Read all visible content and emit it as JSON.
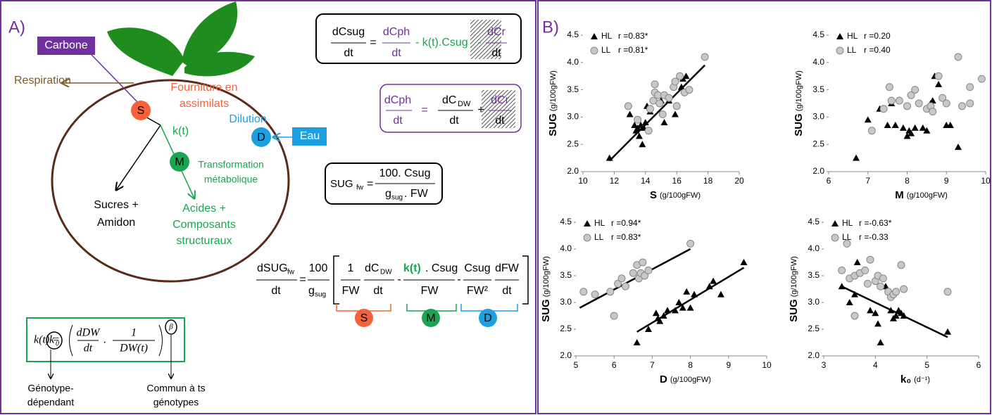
{
  "panel_a": {
    "label": "A)",
    "carbone": "Carbone",
    "respiration": "Respiration",
    "fourniture": [
      "Fourniture en",
      "assimilats"
    ],
    "node_s": "S",
    "node_m": "M",
    "node_d": "D",
    "kt": "k(t)",
    "dilution": "Dilution",
    "eau": "Eau",
    "transformation": [
      "Transformation",
      "métabolique"
    ],
    "sucres": [
      "Sucres +",
      "Amidon"
    ],
    "acides": [
      "Acides  +",
      "Composants",
      "structuraux"
    ],
    "eq_csug": {
      "lhs_num": "dCsug",
      "lhs_den": "dt",
      "equals": "=",
      "cph_num": "dCph",
      "cph_den": "dt",
      "transform": "- k(t).Csug",
      "minus": "-",
      "cr_num": "dCr",
      "cr_den": "dt"
    },
    "eq_cph": {
      "lhs_num": "dCph",
      "lhs_den": "dt",
      "equals": "=",
      "dw_num": "dC",
      "dw_sub": "DW",
      "dw_den": "dt",
      "plus": "+",
      "cr_num": "dCr",
      "cr_den": "dt"
    },
    "eq_sug": {
      "lhs": "SUG",
      "lhs_sub": "fw",
      "equals": "=",
      "num": "100. Csug",
      "den": "g",
      "den_sub": "sug",
      "den_rest": ". FW"
    },
    "eq_dsug": {
      "lhs_num": "dSUG",
      "lhs_sub": "fw",
      "lhs_den": "dt",
      "equals": "=",
      "coef_num": "100",
      "coef_den": "g",
      "coef_den_sub": "sug",
      "t1_num": "1",
      "t1_den": "FW",
      "t2_num": "dC",
      "t2_sub": "DW",
      "t2_den": "dt",
      "minus1": "-",
      "t3_kt": "k(t)",
      "t3_num": ". Csug",
      "t3_den": "FW",
      "minus2": "-",
      "t4_num": "Csug",
      "t4_den": "FW²",
      "t5_num": "dFW",
      "t5_den": "dt"
    },
    "brackets": [
      "S",
      "M",
      "D"
    ],
    "kt_formula": {
      "lhs": "k(t) =",
      "k": "k",
      "k_sub": "0",
      "n1": "dDW",
      "d1": "dt",
      "dot": ".",
      "n2": "1",
      "d2": "DW(t)",
      "exp": "β"
    },
    "genotype_dependent": [
      "Génotype-",
      "dépendant"
    ],
    "common": [
      "Commun à ts",
      "génotypes"
    ]
  },
  "panel_b": {
    "label": "B)"
  },
  "chart_data": [
    {
      "type": "scatter",
      "x_label": "S",
      "x_unit": "(g/100gFW)",
      "y_label": "SUG",
      "y_unit": "(g/100gFW)",
      "xlim": [
        10,
        20
      ],
      "ylim": [
        2,
        4.5
      ],
      "xticks": [
        10,
        12,
        14,
        16,
        18,
        20
      ],
      "yticks": [
        {
          "value": 2,
          "label": "2.0"
        },
        2.5,
        {
          "value": 3,
          "label": "3.0"
        },
        3.5,
        {
          "value": 4,
          "label": "4.0"
        },
        4.5
      ],
      "series": [
        {
          "name": "HL",
          "r_label": "r =0.83*",
          "color": "#000000",
          "marker": "triangle",
          "x": [
            11.7,
            13.0,
            13.3,
            13.4,
            13.5,
            13.6,
            13.7,
            13.8,
            13.9,
            14.0,
            14.1,
            14.3,
            15.0,
            15.2,
            15.5,
            15.9,
            16.3,
            16.4,
            16.6
          ],
          "values": [
            2.25,
            3.05,
            2.85,
            2.75,
            2.8,
            2.65,
            2.85,
            2.5,
            2.8,
            2.9,
            3.2,
            3.1,
            3.3,
            2.9,
            3.3,
            3.05,
            3.55,
            3.7,
            3.75
          ]
        },
        {
          "name": "LL",
          "r_label": "r =0.81*",
          "color": "#c8c8c8",
          "marker": "circle",
          "x": [
            12.9,
            13.5,
            14.2,
            14.3,
            14.5,
            14.6,
            14.6,
            14.8,
            14.9,
            15.1,
            15.2,
            15.5,
            15.8,
            15.9,
            16.0,
            16.2,
            16.5,
            16.8,
            17.8
          ],
          "values": [
            3.2,
            2.95,
            2.75,
            3.15,
            3.3,
            3.45,
            3.6,
            3.4,
            3.25,
            3.05,
            3.4,
            3.35,
            3.55,
            3.65,
            3.2,
            3.75,
            3.45,
            3.5,
            4.1
          ]
        }
      ],
      "fit": [
        {
          "x": [
            11.7,
            17.8
          ],
          "y": [
            2.2,
            3.95
          ]
        }
      ]
    },
    {
      "type": "scatter",
      "x_label": "M",
      "x_unit": "(g/100gFW)",
      "y_label": "SUG",
      "y_unit": "(g/100gFW)",
      "xlim": [
        6,
        10
      ],
      "ylim": [
        2,
        4.5
      ],
      "xticks": [
        6,
        7,
        8,
        9,
        10
      ],
      "yticks": [
        {
          "value": 2,
          "label": "2.0"
        },
        2.5,
        {
          "value": 3,
          "label": "3.0"
        },
        3.5,
        {
          "value": 4,
          "label": "4.0"
        },
        4.5
      ],
      "series": [
        {
          "name": "HL",
          "r_label": "r =0.20",
          "color": "#000000",
          "marker": "triangle",
          "x": [
            6.7,
            7.0,
            7.3,
            7.5,
            7.6,
            7.7,
            7.9,
            8.0,
            8.05,
            8.1,
            8.2,
            8.4,
            8.5,
            8.6,
            8.65,
            8.7,
            8.8,
            9.0,
            9.1,
            9.3
          ],
          "values": [
            2.25,
            2.95,
            3.15,
            2.85,
            3.25,
            2.85,
            2.8,
            2.65,
            2.75,
            2.7,
            2.8,
            2.8,
            2.75,
            3.25,
            3.3,
            3.75,
            3.6,
            2.85,
            2.85,
            2.45
          ]
        },
        {
          "name": "LL",
          "r_label": "r =0.40",
          "color": "#c8c8c8",
          "marker": "circle",
          "x": [
            7.1,
            7.4,
            7.55,
            7.6,
            7.8,
            8.0,
            8.1,
            8.2,
            8.3,
            8.5,
            8.6,
            8.65,
            8.8,
            8.9,
            9.0,
            9.3,
            9.4,
            9.6,
            9.6,
            9.9
          ],
          "values": [
            2.75,
            3.15,
            3.55,
            3.3,
            3.3,
            3.2,
            3.4,
            3.5,
            3.25,
            3.15,
            3.2,
            3.1,
            3.75,
            3.35,
            3.25,
            4.1,
            3.2,
            3.55,
            3.25,
            3.7
          ]
        }
      ],
      "fit": []
    },
    {
      "type": "scatter",
      "x_label": "D",
      "x_unit": "(g/100gFW)",
      "y_label": "SUG",
      "y_unit": "(g/100gFW)",
      "xlim": [
        5,
        10
      ],
      "ylim": [
        2,
        4.5
      ],
      "xticks": [
        5,
        6,
        7,
        8,
        9,
        10
      ],
      "yticks": [
        {
          "value": 2,
          "label": "2.0"
        },
        2.5,
        {
          "value": 3,
          "label": "3.0"
        },
        3.5,
        {
          "value": 4,
          "label": "4.0"
        },
        4.5
      ],
      "series": [
        {
          "name": "HL",
          "r_label": "r =0.94*",
          "color": "#000000",
          "marker": "triangle",
          "x": [
            6.6,
            6.9,
            7.1,
            7.15,
            7.2,
            7.3,
            7.4,
            7.6,
            7.7,
            7.8,
            7.9,
            8.0,
            8.1,
            8.5,
            8.6,
            8.8,
            9.4
          ],
          "values": [
            2.25,
            2.5,
            2.8,
            2.7,
            2.65,
            2.75,
            2.85,
            2.85,
            3.0,
            2.9,
            3.2,
            2.9,
            3.15,
            3.3,
            3.4,
            3.15,
            3.75
          ]
        },
        {
          "name": "LL",
          "r_label": "r =0.83*",
          "color": "#c8c8c8",
          "marker": "circle",
          "x": [
            5.2,
            5.5,
            5.9,
            6.0,
            6.1,
            6.2,
            6.3,
            6.5,
            6.6,
            6.65,
            6.7,
            6.75,
            6.8,
            6.9,
            8.0
          ],
          "values": [
            3.2,
            3.15,
            3.2,
            2.75,
            3.35,
            3.45,
            3.3,
            3.55,
            3.7,
            3.45,
            3.55,
            3.75,
            3.5,
            3.6,
            4.1
          ]
        }
      ],
      "fit": [
        {
          "x": [
            5.1,
            8.0
          ],
          "y": [
            2.9,
            4.0
          ]
        },
        {
          "x": [
            6.6,
            9.4
          ],
          "y": [
            2.45,
            3.65
          ]
        }
      ]
    },
    {
      "type": "scatter",
      "x_label": "k₀",
      "x_unit": "(d⁻¹)",
      "y_label": "SUG",
      "y_unit": "(g/100gFW)",
      "xlim": [
        3,
        6
      ],
      "ylim": [
        2,
        4.5
      ],
      "xticks": [
        3,
        4,
        5,
        6
      ],
      "yticks": [
        {
          "value": 2,
          "label": "2.0"
        },
        2.5,
        {
          "value": 3,
          "label": "3.0"
        },
        3.5,
        {
          "value": 4,
          "label": "4.0"
        },
        4.5
      ],
      "series": [
        {
          "name": "HL",
          "r_label": "r =-0.63*",
          "color": "#000000",
          "marker": "triangle",
          "x": [
            3.35,
            3.5,
            3.6,
            3.65,
            3.9,
            4.0,
            4.05,
            4.1,
            4.2,
            4.3,
            4.35,
            4.4,
            4.45,
            4.5,
            4.55,
            5.4
          ],
          "values": [
            3.3,
            3.0,
            3.15,
            3.75,
            2.85,
            2.8,
            2.6,
            2.25,
            3.3,
            2.85,
            2.7,
            2.75,
            2.85,
            2.8,
            2.75,
            2.45
          ]
        },
        {
          "name": "LL",
          "r_label": "r =-0.33",
          "color": "#c8c8c8",
          "marker": "circle",
          "x": [
            3.35,
            3.45,
            3.5,
            3.6,
            3.7,
            3.8,
            3.85,
            3.9,
            4.0,
            4.05,
            4.1,
            4.15,
            4.25,
            4.3,
            4.35,
            4.4,
            4.5,
            4.55,
            3.6,
            5.4
          ],
          "values": [
            3.6,
            4.1,
            3.45,
            3.5,
            3.55,
            3.6,
            3.35,
            3.8,
            3.4,
            3.5,
            3.3,
            3.45,
            3.2,
            3.1,
            3.15,
            3.2,
            3.7,
            3.25,
            2.75,
            3.2
          ]
        }
      ],
      "fit": [
        {
          "x": [
            3.35,
            5.4
          ],
          "y": [
            3.3,
            2.35
          ]
        }
      ]
    }
  ]
}
